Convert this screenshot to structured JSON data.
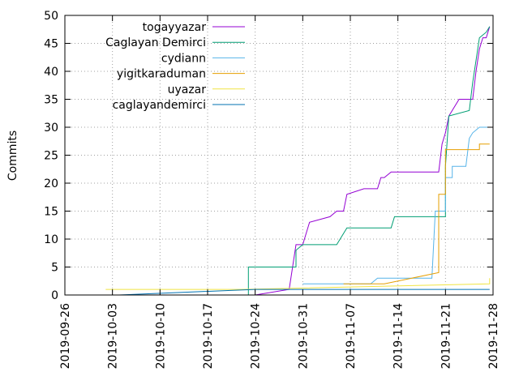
{
  "chart_data": {
    "type": "line",
    "ylabel": "Commits",
    "xlabel": "",
    "ylim": [
      0,
      50
    ],
    "xlim": [
      "2019-09-26",
      "2019-11-28"
    ],
    "grid": true,
    "legend_position": "top-left",
    "x_ticks": [
      "2019-09-26",
      "2019-10-03",
      "2019-10-10",
      "2019-10-17",
      "2019-10-24",
      "2019-10-31",
      "2019-11-07",
      "2019-11-14",
      "2019-11-21",
      "2019-11-28"
    ],
    "y_ticks": [
      0,
      5,
      10,
      15,
      20,
      25,
      30,
      35,
      40,
      45,
      50
    ],
    "series": [
      {
        "name": "togayyazar",
        "color": "#9400d3",
        "points": [
          [
            "2019-10-24",
            0
          ],
          [
            "2019-10-29",
            1
          ],
          [
            "2019-10-29.5",
            5
          ],
          [
            "2019-10-30",
            9
          ],
          [
            "2019-10-31",
            9
          ],
          [
            "2019-10-31.5",
            11
          ],
          [
            "2019-11-01",
            13
          ],
          [
            "2019-11-04",
            14
          ],
          [
            "2019-11-05",
            15
          ],
          [
            "2019-11-06",
            15
          ],
          [
            "2019-11-06.5",
            18
          ],
          [
            "2019-11-09",
            19
          ],
          [
            "2019-11-11",
            19
          ],
          [
            "2019-11-11.5",
            21
          ],
          [
            "2019-11-12",
            21
          ],
          [
            "2019-11-13",
            22
          ],
          [
            "2019-11-19",
            22
          ],
          [
            "2019-11-20",
            22
          ],
          [
            "2019-11-20.5",
            27
          ],
          [
            "2019-11-21",
            29
          ],
          [
            "2019-11-21.5",
            32
          ],
          [
            "2019-11-22",
            33
          ],
          [
            "2019-11-23",
            35
          ],
          [
            "2019-11-25",
            35
          ],
          [
            "2019-11-25.5",
            40
          ],
          [
            "2019-11-26",
            44
          ],
          [
            "2019-11-26.5",
            46
          ],
          [
            "2019-11-27",
            46
          ],
          [
            "2019-11-27.5",
            48
          ]
        ]
      },
      {
        "name": "Caglayan Demirci",
        "color": "#009e73",
        "points": [
          [
            "2019-10-23",
            0
          ],
          [
            "2019-10-23",
            5
          ],
          [
            "2019-10-30",
            5
          ],
          [
            "2019-10-30",
            8
          ],
          [
            "2019-10-31",
            9
          ],
          [
            "2019-11-05",
            9
          ],
          [
            "2019-11-06.5",
            12
          ],
          [
            "2019-11-13",
            12
          ],
          [
            "2019-11-13.5",
            14
          ],
          [
            "2019-11-21",
            14
          ],
          [
            "2019-11-21",
            23
          ],
          [
            "2019-11-21.5",
            32
          ],
          [
            "2019-11-24.5",
            33
          ],
          [
            "2019-11-25",
            38
          ],
          [
            "2019-11-26",
            46
          ],
          [
            "2019-11-27",
            47
          ],
          [
            "2019-11-27.5",
            48
          ]
        ]
      },
      {
        "name": "cydiann",
        "color": "#56b4e9",
        "points": [
          [
            "2019-10-31",
            2
          ],
          [
            "2019-11-10",
            2
          ],
          [
            "2019-11-11",
            3
          ],
          [
            "2019-11-19",
            3
          ],
          [
            "2019-11-19.5",
            15
          ],
          [
            "2019-11-21",
            15
          ],
          [
            "2019-11-21",
            21
          ],
          [
            "2019-11-22",
            21
          ],
          [
            "2019-11-22",
            23
          ],
          [
            "2019-11-24",
            23
          ],
          [
            "2019-11-24.5",
            28
          ],
          [
            "2019-11-25",
            29
          ],
          [
            "2019-11-26",
            30
          ],
          [
            "2019-11-27.5",
            30
          ]
        ]
      },
      {
        "name": "yigitkaraduman",
        "color": "#e69f00",
        "points": [
          [
            "2019-11-06",
            2
          ],
          [
            "2019-11-12",
            2
          ],
          [
            "2019-11-20",
            4
          ],
          [
            "2019-11-20",
            18
          ],
          [
            "2019-11-21",
            18
          ],
          [
            "2019-11-21",
            26
          ],
          [
            "2019-11-26",
            26
          ],
          [
            "2019-11-26",
            27
          ],
          [
            "2019-11-27.5",
            27
          ]
        ]
      },
      {
        "name": "uyazar",
        "color": "#f0e442",
        "points": [
          [
            "2019-10-02",
            1
          ],
          [
            "2019-10-22",
            1
          ],
          [
            "2019-11-27.5",
            2
          ],
          [
            "2019-11-27.5",
            3
          ]
        ]
      },
      {
        "name": "caglayandemirci",
        "color": "#0072b2",
        "points": [
          [
            "2019-10-04",
            0
          ],
          [
            "2019-10-24",
            1
          ],
          [
            "2019-11-27.5",
            1
          ]
        ]
      }
    ]
  }
}
